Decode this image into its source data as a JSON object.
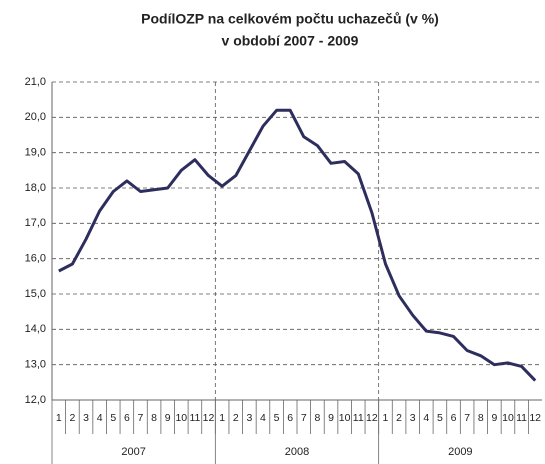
{
  "chart_data": {
    "type": "line",
    "title": "PodílOZP na celkovém počtu uchazečů (v %)",
    "subtitle": "v období 2007 - 2009",
    "categories": [
      "1",
      "2",
      "3",
      "4",
      "5",
      "6",
      "7",
      "8",
      "9",
      "10",
      "11",
      "12",
      "1",
      "2",
      "3",
      "4",
      "5",
      "6",
      "7",
      "8",
      "9",
      "10",
      "11",
      "12",
      "1",
      "2",
      "3",
      "4",
      "5",
      "6",
      "7",
      "8",
      "9",
      "10",
      "11",
      "12"
    ],
    "groups": [
      "2007",
      "2008",
      "2009"
    ],
    "values": [
      15.65,
      15.85,
      16.55,
      17.35,
      17.9,
      18.2,
      17.9,
      17.95,
      18.0,
      18.5,
      18.8,
      18.35,
      18.05,
      18.35,
      19.05,
      19.75,
      20.2,
      20.2,
      19.45,
      19.2,
      18.7,
      18.75,
      18.4,
      17.3,
      15.85,
      14.95,
      14.4,
      13.95,
      13.9,
      13.8,
      13.4,
      13.25,
      13.0,
      13.05,
      12.95,
      12.55
    ],
    "color": "#2e2e5e",
    "ylim": [
      12,
      21
    ],
    "yticks": [
      {
        "value": 12,
        "label": "12,0"
      },
      {
        "value": 13,
        "label": "13,0"
      },
      {
        "value": 14,
        "label": "14,0"
      },
      {
        "value": 15,
        "label": "15,0"
      },
      {
        "value": 16,
        "label": "16,0"
      },
      {
        "value": 17,
        "label": "17,0"
      },
      {
        "value": 18,
        "label": "18,0"
      },
      {
        "value": 19,
        "label": "19,0"
      },
      {
        "value": 20,
        "label": "20,0"
      },
      {
        "value": 21,
        "label": "21,0"
      }
    ],
    "grid": true
  }
}
